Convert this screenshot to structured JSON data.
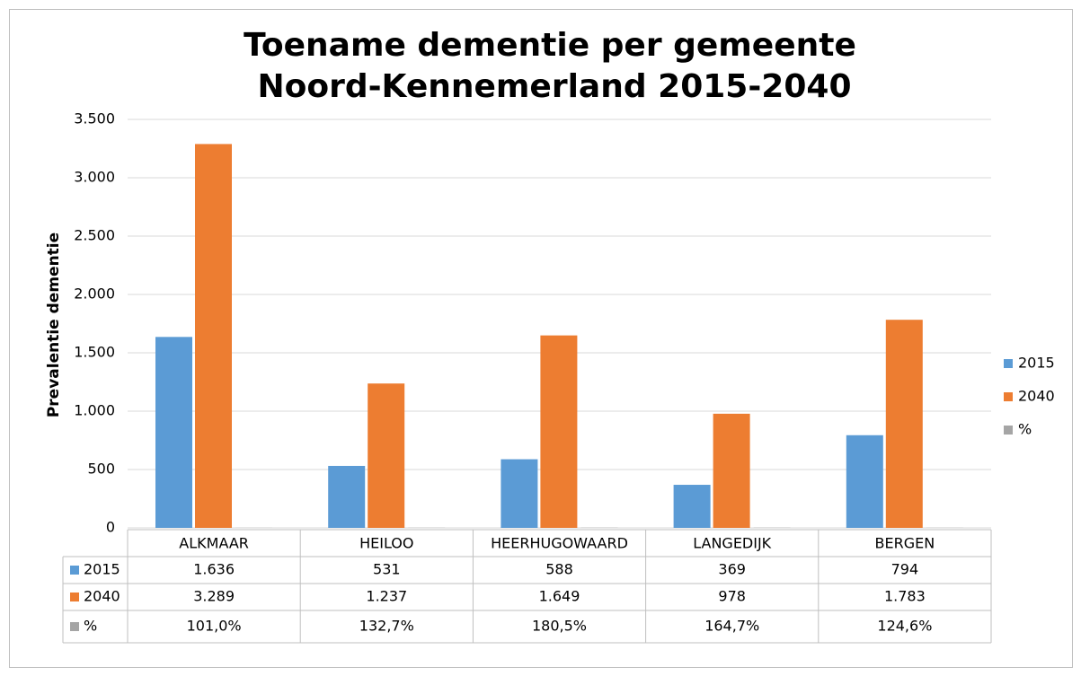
{
  "chart_data": {
    "type": "bar",
    "title": [
      "Toename dementie per gemeente",
      "Noord-Kennemerland  2015-2040"
    ],
    "y_label": "Prevalentie dementie",
    "categories": [
      "ALKMAAR",
      "HEILOO",
      "HEERHUGOWAARD",
      "LANGEDIJK",
      "BERGEN"
    ],
    "series": [
      {
        "name": "2015",
        "color": "#5b9bd5",
        "values": [
          1636,
          531,
          588,
          369,
          794
        ],
        "value_labels": [
          "1.636",
          "531",
          "588",
          "369",
          "794"
        ]
      },
      {
        "name": "2040",
        "color": "#ed7d31",
        "values": [
          3289,
          1237,
          1649,
          978,
          1783
        ],
        "value_labels": [
          "3.289",
          "1.237",
          "1.649",
          "978",
          "1.783"
        ]
      },
      {
        "name": "%",
        "color": "#a5a5a5",
        "values": [
          1.01,
          1.327,
          1.805,
          1.647,
          1.246
        ],
        "value_labels": [
          "101,0%",
          "132,7%",
          "180,5%",
          "164,7%",
          "124,6%"
        ]
      }
    ],
    "ylim": [
      0,
      3500
    ],
    "yticks": [
      0,
      500,
      {
        "value": 1000,
        "label": "1.000"
      },
      {
        "value": 1500,
        "label": "1.500"
      },
      {
        "value": 2000,
        "label": "2.000"
      },
      {
        "value": 2500,
        "label": "2.500"
      },
      {
        "value": 3000,
        "label": "3.000"
      },
      {
        "value": 3500,
        "label": "3.500"
      }
    ],
    "grid": true,
    "legend": "right",
    "data_table": true
  }
}
